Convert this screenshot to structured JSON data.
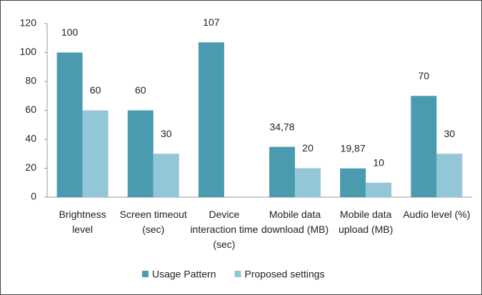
{
  "chart_data": {
    "type": "bar",
    "categories": [
      "Brightness level",
      "Screen timeout (sec)",
      "Device interaction time (sec)",
      "Mobile data download (MB)",
      "Mobile data upload (MB)",
      "Audio level (%)"
    ],
    "series": [
      {
        "name": "Usage Pattern",
        "color": "#4a9ab0",
        "values": [
          100,
          60,
          107,
          34.78,
          19.87,
          70
        ],
        "value_labels": [
          "100",
          "60",
          "107",
          "34,78",
          "19,87",
          "70"
        ]
      },
      {
        "name": "Proposed settings",
        "color": "#93c6d6",
        "values": [
          60,
          30,
          null,
          20,
          10,
          30
        ],
        "value_labels": [
          "60",
          "30",
          null,
          "20",
          "10",
          "30"
        ]
      }
    ],
    "ylim": [
      0,
      120
    ],
    "yticks": [
      0,
      20,
      40,
      60,
      80,
      100,
      120
    ],
    "grid": false,
    "legend": "bottom"
  }
}
